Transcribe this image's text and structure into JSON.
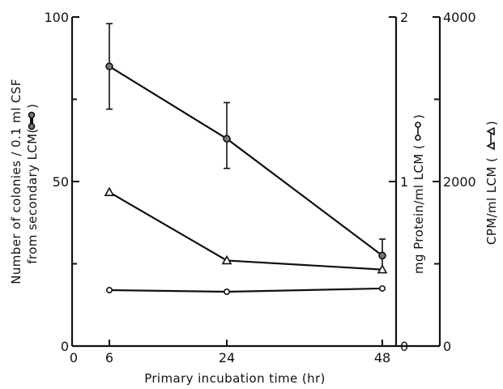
{
  "chart_data": {
    "type": "line",
    "xlabel": "Primary incubation time (hr)",
    "x_ticks": [
      0,
      6,
      24,
      48
    ],
    "xlim": [
      0,
      48
    ],
    "axes": {
      "left": {
        "label_line1": "Number of colonies / 0.1 ml CSF",
        "label_line2": "from secondary LCM(",
        "label_marker": "filled-circle-line",
        "label_close": ")",
        "ticks": [
          0,
          50,
          100
        ],
        "tick_labels": [
          "0",
          "50",
          "100"
        ],
        "ylim": [
          0,
          100
        ]
      },
      "middle": {
        "label": "mg Protein/ml LCM (",
        "label_marker": "open-circle-line",
        "label_close": ")",
        "ticks": [
          0,
          1,
          2
        ],
        "tick_labels": [
          "0",
          "1",
          "2"
        ],
        "ylim": [
          0,
          2
        ]
      },
      "right": {
        "label": "CPM/ml LCM (",
        "label_marker": "triangle-line",
        "label_close": ")",
        "ticks": [
          0,
          2000,
          4000
        ],
        "tick_labels": [
          "0",
          "2000",
          "4000"
        ],
        "ylim": [
          0,
          4000
        ]
      }
    },
    "series": [
      {
        "marker": "filled-circle",
        "axis": "left",
        "x": [
          6,
          24,
          48
        ],
        "y": [
          85,
          63,
          27.5
        ],
        "yerr_low": [
          72,
          54,
          23
        ],
        "yerr_high": [
          98,
          74,
          32.5
        ]
      },
      {
        "marker": "open-circle",
        "axis": "middle",
        "x": [
          6,
          24,
          48
        ],
        "y": [
          0.34,
          0.33,
          0.35
        ]
      },
      {
        "marker": "triangle",
        "axis": "right",
        "x": [
          6,
          24,
          48
        ],
        "y": [
          1870,
          1040,
          930
        ]
      }
    ],
    "grid": false
  }
}
